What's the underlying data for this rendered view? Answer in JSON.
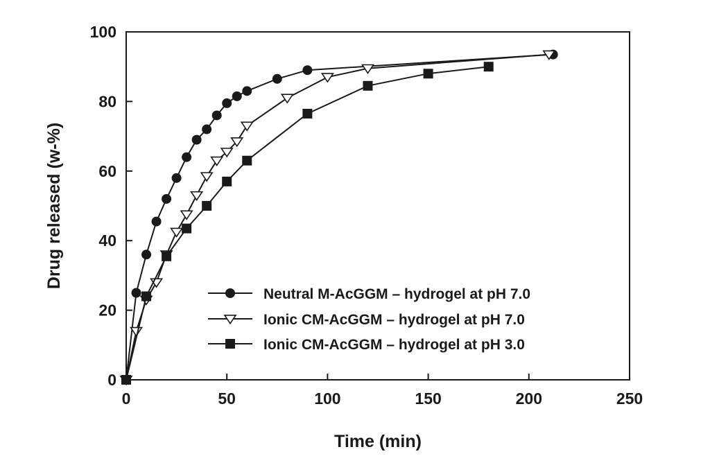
{
  "chart_data": {
    "type": "line",
    "title": "",
    "xlabel": "Time (min)",
    "ylabel": "Drug released (w-%)",
    "xlim": [
      0,
      250
    ],
    "ylim": [
      0,
      100
    ],
    "xticks": [
      0,
      50,
      100,
      150,
      200,
      250
    ],
    "yticks": [
      0,
      20,
      40,
      60,
      80,
      100
    ],
    "grid": false,
    "legend_position": "lower-right",
    "series": [
      {
        "name": "Neutral M-AcGGM – hydrogel at pH 7.0",
        "marker": "filled-circle",
        "color": "#1a1a1a",
        "points": [
          [
            0,
            0
          ],
          [
            5,
            25
          ],
          [
            10,
            36
          ],
          [
            15,
            45.5
          ],
          [
            20,
            52
          ],
          [
            25,
            58
          ],
          [
            30,
            64
          ],
          [
            35,
            69
          ],
          [
            40,
            72
          ],
          [
            45,
            76
          ],
          [
            50,
            79.5
          ],
          [
            55,
            81.5
          ],
          [
            60,
            83
          ],
          [
            75,
            86.5
          ],
          [
            90,
            89
          ],
          [
            212,
            93.5
          ]
        ]
      },
      {
        "name": "Ionic CM-AcGGM – hydrogel at pH 7.0",
        "marker": "open-triangle-down",
        "color": "#1a1a1a",
        "points": [
          [
            0,
            0
          ],
          [
            5,
            14
          ],
          [
            10,
            23
          ],
          [
            15,
            28
          ],
          [
            20,
            36
          ],
          [
            25,
            42.5
          ],
          [
            30,
            47.5
          ],
          [
            35,
            53
          ],
          [
            40,
            58.5
          ],
          [
            45,
            63
          ],
          [
            50,
            65.5
          ],
          [
            55,
            68.5
          ],
          [
            60,
            73
          ],
          [
            80,
            81
          ],
          [
            100,
            87
          ],
          [
            120,
            89.5
          ],
          [
            210,
            93.5
          ]
        ]
      },
      {
        "name": "Ionic CM-AcGGM – hydrogel at pH 3.0",
        "marker": "filled-square",
        "color": "#1a1a1a",
        "points": [
          [
            0,
            0
          ],
          [
            10,
            24
          ],
          [
            20,
            35.5
          ],
          [
            30,
            43.5
          ],
          [
            40,
            50
          ],
          [
            50,
            57
          ],
          [
            60,
            63
          ],
          [
            90,
            76.5
          ],
          [
            120,
            84.5
          ],
          [
            150,
            88
          ],
          [
            180,
            90
          ]
        ]
      }
    ]
  }
}
